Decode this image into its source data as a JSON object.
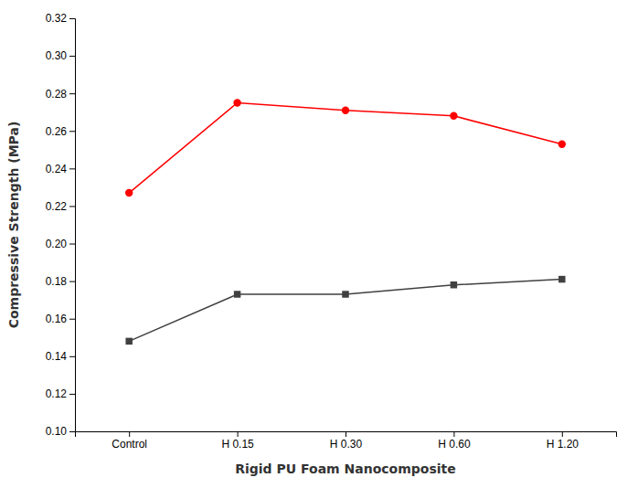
{
  "chart_data": {
    "type": "line",
    "xlabel": "Rigid PU Foam Nanocomposite",
    "ylabel": "Compressive Strength (MPa)",
    "categories": [
      "Control",
      "H 0.15",
      "H 0.30",
      "H 0.60",
      "H 1.20"
    ],
    "series": [
      {
        "color": "#404040",
        "marker": "square",
        "values": [
          0.148,
          0.173,
          0.173,
          0.178,
          0.181
        ]
      },
      {
        "color": "#ff0000",
        "marker": "circle",
        "values": [
          0.227,
          0.275,
          0.271,
          0.268,
          0.253
        ]
      }
    ],
    "ylim": [
      0.1,
      0.32
    ],
    "yticks": [
      {
        "value": 0.1,
        "label": "0.10"
      },
      0.12,
      0.14,
      0.16,
      0.18,
      {
        "value": 0.2,
        "label": "0.20"
      },
      0.22,
      0.24,
      0.26,
      0.28,
      {
        "value": 0.3,
        "label": "0.30"
      },
      0.32
    ],
    "grid": false
  }
}
